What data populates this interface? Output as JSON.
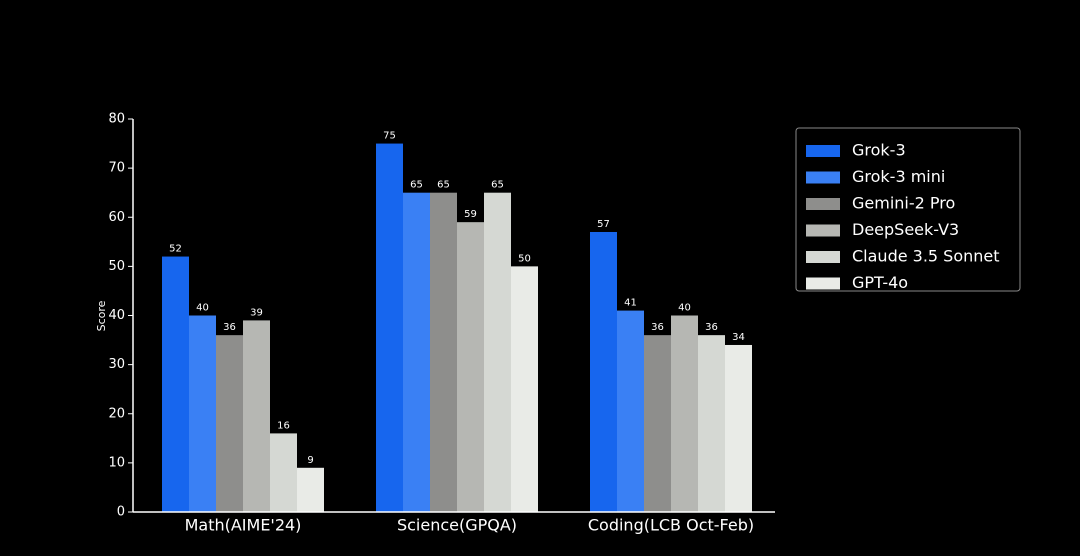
{
  "chart_data": {
    "type": "bar",
    "y_label": "Score",
    "categories": [
      "Math(AIME'24)",
      "Science(GPQA)",
      "Coding(LCB Oct-Feb)"
    ],
    "series": [
      {
        "name": "Grok-3",
        "color": "#1766ee",
        "values": [
          52,
          75,
          57
        ]
      },
      {
        "name": "Grok-3 mini",
        "color": "#3a80f4",
        "values": [
          40,
          65,
          41
        ]
      },
      {
        "name": "Gemini-2 Pro",
        "color": "#8e8e8c",
        "values": [
          36,
          65,
          36
        ]
      },
      {
        "name": "DeepSeek-V3",
        "color": "#b6b7b3",
        "values": [
          39,
          59,
          40
        ]
      },
      {
        "name": "Claude 3.5 Sonnet",
        "color": "#d5d8d3",
        "values": [
          16,
          65,
          36
        ]
      },
      {
        "name": "GPT-4o",
        "color": "#e9ebe7",
        "values": [
          9,
          50,
          34
        ]
      }
    ],
    "ylim": [
      0,
      80
    ],
    "yticks": [
      0,
      10,
      20,
      30,
      40,
      50,
      60,
      70,
      80
    ],
    "legend": "upper right"
  }
}
